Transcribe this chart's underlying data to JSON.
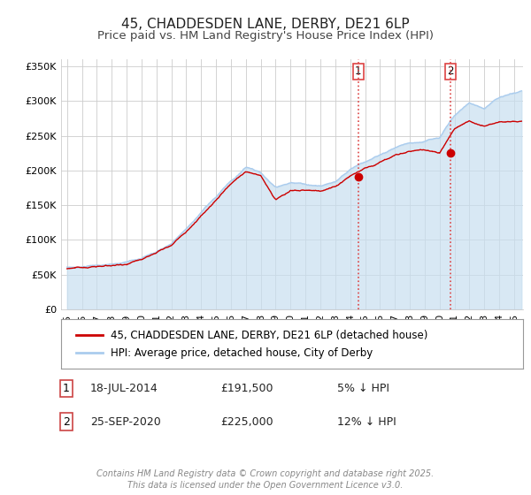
{
  "title": "45, CHADDESDEN LANE, DERBY, DE21 6LP",
  "subtitle": "Price paid vs. HM Land Registry's House Price Index (HPI)",
  "ylim": [
    0,
    360000
  ],
  "yticks": [
    0,
    50000,
    100000,
    150000,
    200000,
    250000,
    300000,
    350000
  ],
  "ytick_labels": [
    "£0",
    "£50K",
    "£100K",
    "£150K",
    "£200K",
    "£250K",
    "£300K",
    "£350K"
  ],
  "xlim_start": 1994.6,
  "xlim_end": 2025.6,
  "hpi_color": "#aaccee",
  "hpi_fill_color": "#c8dff0",
  "price_color": "#cc0000",
  "vline_color": "#dd4444",
  "grid_color": "#cccccc",
  "background_color": "#ffffff",
  "legend_label_price": "45, CHADDESDEN LANE, DERBY, DE21 6LP (detached house)",
  "legend_label_hpi": "HPI: Average price, detached house, City of Derby",
  "transaction1_label": "1",
  "transaction1_date": "18-JUL-2014",
  "transaction1_price": "£191,500",
  "transaction1_note": "5% ↓ HPI",
  "transaction1_year": 2014.54,
  "transaction1_value": 191500,
  "transaction2_label": "2",
  "transaction2_date": "25-SEP-2020",
  "transaction2_price": "£225,000",
  "transaction2_note": "12% ↓ HPI",
  "transaction2_year": 2020.73,
  "transaction2_value": 225000,
  "footer": "Contains HM Land Registry data © Crown copyright and database right 2025.\nThis data is licensed under the Open Government Licence v3.0.",
  "title_fontsize": 11,
  "subtitle_fontsize": 9.5,
  "tick_fontsize": 8,
  "legend_fontsize": 8.5,
  "footer_fontsize": 7
}
